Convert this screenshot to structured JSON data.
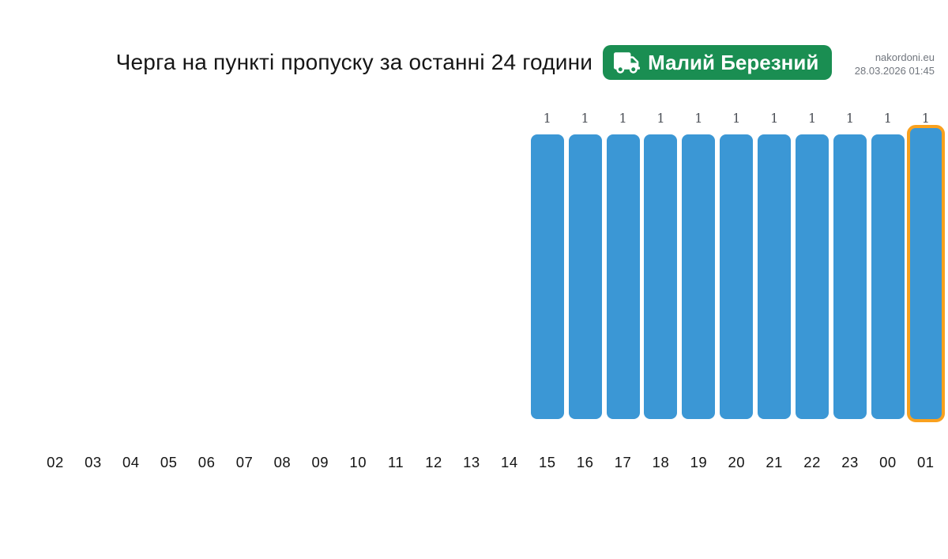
{
  "meta": {
    "site": "nakordoni.eu",
    "timestamp": "28.03.2026 01:45"
  },
  "header": {
    "title": "Черга на пункті пропуску за останні 24 години",
    "badge": {
      "label": "Малий Березний",
      "icon": "truck-icon",
      "bg": "#1a8e52"
    }
  },
  "chart_data": {
    "type": "bar",
    "title": "Черга на пункті пропуску за останні 24 години — Малий Березний",
    "categories": [
      "02",
      "03",
      "04",
      "05",
      "06",
      "07",
      "08",
      "09",
      "10",
      "11",
      "12",
      "13",
      "14",
      "15",
      "16",
      "17",
      "18",
      "19",
      "20",
      "21",
      "22",
      "23",
      "00",
      "01"
    ],
    "values": [
      0,
      0,
      0,
      0,
      0,
      0,
      0,
      0,
      0,
      0,
      0,
      0,
      0,
      1,
      1,
      1,
      1,
      1,
      1,
      1,
      1,
      1,
      1,
      1
    ],
    "xlabel": "",
    "ylabel": "",
    "ylim": [
      0,
      1
    ],
    "grid": false,
    "legend": false,
    "value_labels": "shown above non-zero bars",
    "bar_color": "#3b97d5",
    "highlight_color": "#f9a11e",
    "highlighted_category": "01",
    "value_label_color": "#4d5158"
  }
}
